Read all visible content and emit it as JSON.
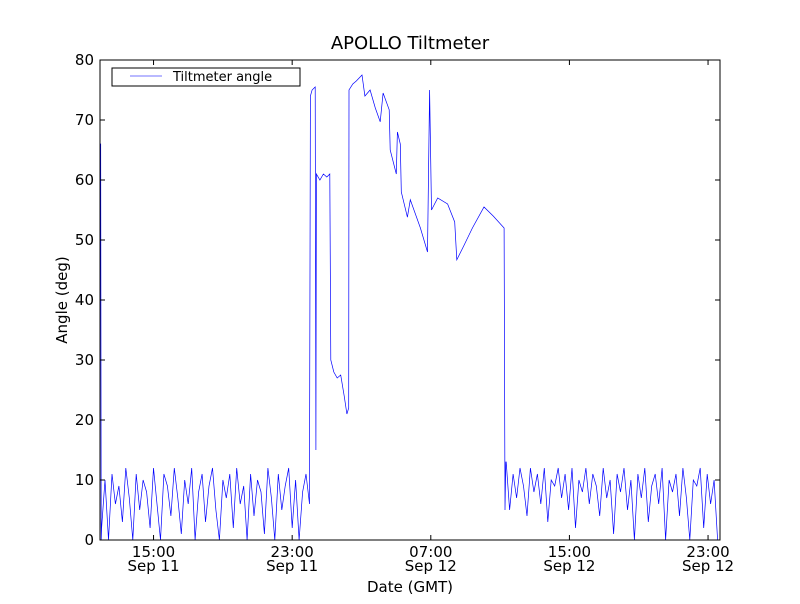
{
  "chart_data": {
    "type": "line",
    "title": "APOLLO Tiltmeter",
    "xlabel": "Date (GMT)",
    "ylabel": "Angle (deg)",
    "x_units": "hours since 00:00 Sep 11",
    "xlim": [
      11.91,
      47.69
    ],
    "ylim": [
      0,
      80
    ],
    "yticks": [
      0,
      10,
      20,
      30,
      40,
      50,
      60,
      70,
      80
    ],
    "xticks": [
      {
        "value": 15,
        "time": "15:00",
        "date": "Sep 11"
      },
      {
        "value": 23,
        "time": "23:00",
        "date": "Sep 11"
      },
      {
        "value": 31,
        "time": "07:00",
        "date": "Sep 12"
      },
      {
        "value": 39,
        "time": "15:00",
        "date": "Sep 12"
      },
      {
        "value": 47,
        "time": "23:00",
        "date": "Sep 12"
      }
    ],
    "grid": false,
    "legend": {
      "position": "top-left",
      "entries": [
        "Tiltmeter angle"
      ]
    },
    "series": [
      {
        "name": "Tiltmeter angle",
        "color": "#0000ff",
        "start_points": [
          [
            11.91,
            66
          ],
          [
            11.95,
            66
          ],
          [
            11.98,
            0
          ]
        ],
        "noise_segment_1": {
          "start": 12.0,
          "step": 0.2,
          "values": [
            2,
            10,
            0,
            11,
            6,
            9,
            3,
            12,
            7,
            0,
            11,
            5,
            10,
            8,
            2,
            12,
            6,
            0,
            11,
            9,
            4,
            12,
            7,
            1,
            10,
            6,
            12,
            0,
            8,
            11,
            3,
            9,
            12,
            5,
            0,
            10,
            7,
            11,
            2,
            12,
            6,
            9,
            0,
            11,
            4,
            10,
            8,
            1,
            12,
            7,
            0,
            11,
            5,
            9,
            12,
            2,
            10,
            0,
            8,
            11,
            6
          ]
        },
        "main_points": [
          [
            24.0,
            10
          ],
          [
            24.05,
            74
          ],
          [
            24.15,
            75
          ],
          [
            24.33,
            75.5
          ],
          [
            24.37,
            15
          ],
          [
            24.4,
            61
          ],
          [
            24.6,
            60
          ],
          [
            24.8,
            61
          ],
          [
            25.0,
            60.5
          ],
          [
            25.17,
            61
          ],
          [
            25.23,
            30
          ],
          [
            25.4,
            28
          ],
          [
            25.6,
            27
          ],
          [
            25.8,
            27.5
          ],
          [
            26.0,
            24
          ],
          [
            26.16,
            21
          ],
          [
            26.26,
            22
          ],
          [
            26.28,
            75
          ],
          [
            26.5,
            76
          ],
          [
            26.7,
            76.5
          ],
          [
            27.03,
            77.5
          ],
          [
            27.2,
            74
          ],
          [
            27.5,
            75
          ],
          [
            27.8,
            72
          ],
          [
            28.08,
            69.7
          ],
          [
            28.25,
            74.5
          ],
          [
            28.6,
            71.7
          ],
          [
            28.66,
            65
          ],
          [
            29.01,
            61
          ],
          [
            29.07,
            68
          ],
          [
            29.24,
            66
          ],
          [
            29.3,
            58
          ],
          [
            29.65,
            53.8
          ],
          [
            29.82,
            56.7
          ],
          [
            30.4,
            52
          ],
          [
            30.81,
            48
          ],
          [
            30.93,
            75
          ],
          [
            31.04,
            55
          ],
          [
            31.4,
            57
          ],
          [
            31.97,
            56
          ],
          [
            32.38,
            53
          ],
          [
            32.5,
            46.7
          ],
          [
            32.9,
            49
          ],
          [
            33.4,
            52
          ],
          [
            34.07,
            55.5
          ],
          [
            34.6,
            54
          ],
          [
            35.23,
            52
          ],
          [
            35.28,
            5
          ],
          [
            35.33,
            13
          ]
        ],
        "noise_segment_2": {
          "start": 35.35,
          "step": 0.2,
          "values": [
            13,
            5,
            11,
            7,
            12,
            9,
            4,
            12,
            8,
            11,
            6,
            12,
            3,
            10,
            9,
            12,
            7,
            11,
            5,
            12,
            2,
            10,
            8,
            12,
            6,
            11,
            9,
            4,
            12,
            7,
            10,
            1,
            11,
            8,
            12,
            5,
            10,
            0,
            11,
            7,
            12,
            3,
            9,
            11,
            6,
            12,
            0,
            10,
            8,
            11,
            4,
            12,
            7,
            0,
            10,
            9,
            12,
            2,
            11,
            6,
            10,
            0
          ]
        }
      }
    ]
  }
}
